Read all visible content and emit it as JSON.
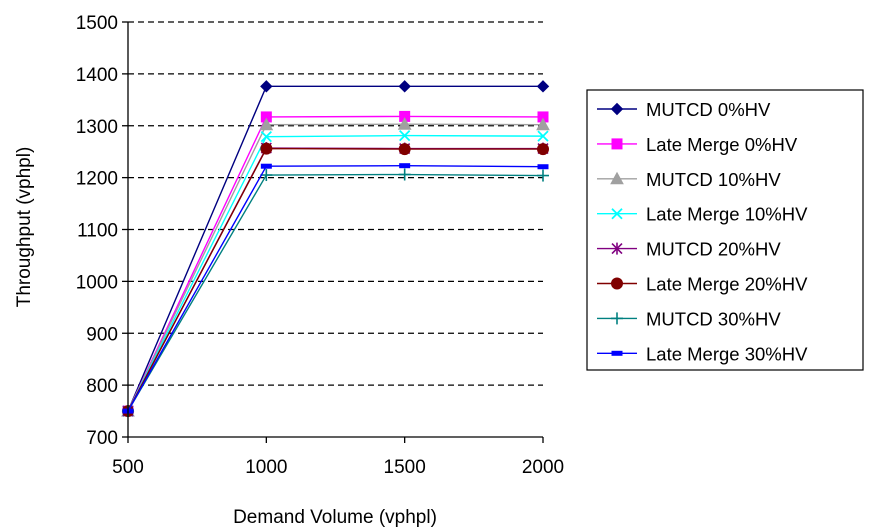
{
  "chart_data": {
    "type": "line",
    "title": "",
    "xlabel": "Demand Volume (vphpl)",
    "ylabel": "Throughput (vphpl)",
    "x": [
      500,
      1000,
      1500,
      2000
    ],
    "xlim": [
      500,
      2000
    ],
    "ylim": [
      700,
      1500
    ],
    "x_ticks": [
      500,
      1000,
      1500,
      2000
    ],
    "y_ticks": [
      700,
      800,
      900,
      1000,
      1100,
      1200,
      1300,
      1400,
      1500
    ],
    "grid": "horizontal dashed",
    "legend_position": "right",
    "series": [
      {
        "name": "MUTCD 0%HV",
        "values": [
          750,
          1376,
          1376,
          1376
        ],
        "color": "#000080",
        "marker": "diamond"
      },
      {
        "name": "Late Merge 0%HV",
        "values": [
          750,
          1317,
          1318,
          1317
        ],
        "color": "#ff00ff",
        "marker": "square"
      },
      {
        "name": "MUTCD 10%HV",
        "values": [
          750,
          1302,
          1303,
          1302
        ],
        "color": "#a0a0a0",
        "marker": "triangle"
      },
      {
        "name": "Late Merge 10%HV",
        "values": [
          750,
          1279,
          1281,
          1280
        ],
        "color": "#00ffff",
        "marker": "x"
      },
      {
        "name": "MUTCD 20%HV",
        "values": [
          750,
          1257,
          1256,
          1256
        ],
        "color": "#800080",
        "marker": "star"
      },
      {
        "name": "Late Merge 20%HV",
        "values": [
          750,
          1256,
          1255,
          1255
        ],
        "color": "#800000",
        "marker": "circle"
      },
      {
        "name": "MUTCD 30%HV",
        "values": [
          750,
          1205,
          1206,
          1204
        ],
        "color": "#008080",
        "marker": "plus"
      },
      {
        "name": "Late Merge 30%HV",
        "values": [
          750,
          1222,
          1223,
          1221
        ],
        "color": "#0000ff",
        "marker": "dash"
      }
    ]
  }
}
